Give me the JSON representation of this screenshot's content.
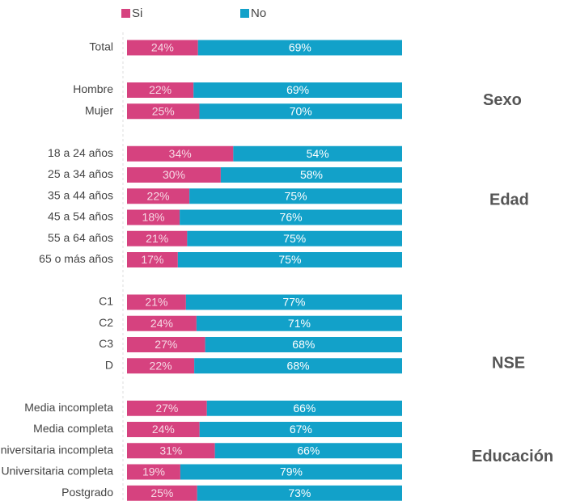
{
  "chart_data": {
    "type": "bar",
    "orientation": "horizontal",
    "stacking": "percent",
    "categories": [
      "Total",
      null,
      "Hombre",
      "Mujer",
      null,
      "18 a 24 años",
      "25 a 34 años",
      "35 a 44 años",
      "45 a 54 años",
      "55 a 64 años",
      "65 o más años",
      null,
      "C1",
      "C2",
      "C3",
      "D",
      null,
      "Media incompleta",
      "Media completa",
      "Universitaria incompleta",
      "Universitaria completa",
      "Postgrado"
    ],
    "series": [
      {
        "name": "Si",
        "color": "#d6427f",
        "values": [
          24,
          null,
          22,
          25,
          null,
          34,
          30,
          22,
          18,
          21,
          17,
          null,
          21,
          24,
          27,
          22,
          null,
          27,
          24,
          31,
          19,
          25
        ],
        "value_labels": [
          "24%",
          null,
          "22%",
          "25%",
          null,
          "34%",
          "30%",
          "22%",
          "18%",
          "21%",
          "17%",
          null,
          "21%",
          "24%",
          "27%",
          "22%",
          null,
          "27%",
          "24%",
          "31%",
          "19%",
          "25%"
        ]
      },
      {
        "name": "No",
        "color": "#12a1c9",
        "values": [
          69,
          null,
          69,
          70,
          null,
          54,
          58,
          75,
          76,
          75,
          75,
          null,
          77,
          71,
          68,
          68,
          null,
          66,
          67,
          66,
          79,
          73
        ],
        "value_labels": [
          "69%",
          null,
          "69%",
          "70%",
          null,
          "54%",
          "58%",
          "75%",
          "76%",
          "75%",
          "75%",
          null,
          "77%",
          "71%",
          "68%",
          "68%",
          null,
          "66%",
          "67%",
          "66%",
          "79%",
          "73%"
        ]
      }
    ],
    "annotations": [
      {
        "text": "Sexo",
        "row": 2.5
      },
      {
        "text": "Edad",
        "row": 7.2
      },
      {
        "text": "NSE",
        "row": 14.9
      },
      {
        "text": "Educación",
        "row": 19.3
      }
    ],
    "legend": "top"
  }
}
